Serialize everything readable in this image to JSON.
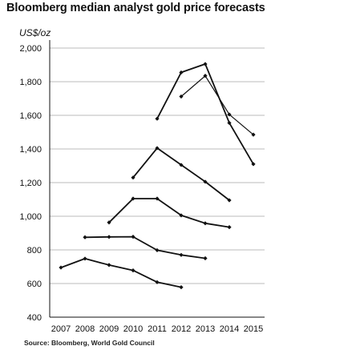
{
  "chart_data": {
    "type": "line",
    "title": "Bloomberg median analyst gold price forecasts",
    "ylabel": "US$/oz",
    "xlabel": "",
    "source": "Source: Bloomberg, World Gold Council",
    "x_ticks": [
      "2007",
      "2008",
      "2009",
      "2010",
      "2011",
      "2012",
      "2013",
      "2014",
      "2015"
    ],
    "y_ticks": [
      "400",
      "600",
      "800",
      "1,000",
      "1,200",
      "1,400",
      "1,600",
      "1,800",
      "2,000"
    ],
    "ylim": [
      400,
      2000
    ],
    "xlim": [
      2007,
      2015
    ],
    "grid": "horizontal",
    "legend": "none",
    "colors": {
      "line": "#111111",
      "grid": "#bbbbbb",
      "axis": "#111111"
    },
    "series": [
      {
        "x": [
          2007,
          2008,
          2009,
          2010,
          2011,
          2012
        ],
        "y": [
          695,
          748,
          710,
          678,
          608,
          578
        ]
      },
      {
        "x": [
          2008,
          2009,
          2010,
          2011,
          2012,
          2013
        ],
        "y": [
          875,
          877,
          878,
          798,
          770,
          750
        ]
      },
      {
        "x": [
          2009,
          2010,
          2011,
          2012,
          2013,
          2014
        ],
        "y": [
          963,
          1105,
          1105,
          1005,
          958,
          935
        ]
      },
      {
        "x": [
          2010,
          2011,
          2012,
          2013,
          2014
        ],
        "y": [
          1230,
          1405,
          1305,
          1205,
          1095
        ]
      },
      {
        "x": [
          2011,
          2012,
          2013,
          2014,
          2015
        ],
        "y": [
          1580,
          1855,
          1905,
          1555,
          1310
        ]
      },
      {
        "x": [
          2012,
          2013,
          2014,
          2015
        ],
        "y": [
          1712,
          1835,
          1605,
          1485
        ]
      }
    ]
  }
}
